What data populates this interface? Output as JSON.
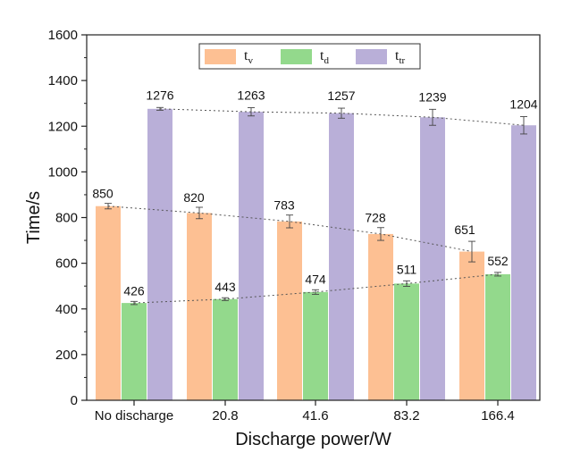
{
  "chart_data": {
    "type": "bar",
    "title": "",
    "xlabel": "Discharge power/W",
    "ylabel": "Time/s",
    "ylim": [
      0,
      1600
    ],
    "yticks": [
      0,
      200,
      400,
      600,
      800,
      1000,
      1200,
      1400,
      1600
    ],
    "grid": false,
    "legend_position": "top-center",
    "categories": [
      "No discharge",
      "20.8",
      "41.6",
      "83.2",
      "166.4"
    ],
    "series": [
      {
        "name": "tv",
        "legend_base": "t",
        "legend_sub": "v",
        "color": "#FDC093",
        "values": [
          850,
          820,
          783,
          728,
          651
        ],
        "errors": [
          12,
          25,
          28,
          28,
          45
        ],
        "labels": [
          "850",
          "820",
          "783",
          "728",
          "651"
        ]
      },
      {
        "name": "td",
        "legend_base": "t",
        "legend_sub": "d",
        "color": "#93D98C",
        "values": [
          426,
          443,
          474,
          511,
          552
        ],
        "errors": [
          7,
          6,
          10,
          12,
          8
        ],
        "labels": [
          "426",
          "443",
          "474",
          "511",
          "552"
        ]
      },
      {
        "name": "ttr",
        "legend_base": "t",
        "legend_sub": "tr",
        "color": "#B9AFD8",
        "values": [
          1276,
          1263,
          1257,
          1239,
          1204
        ],
        "errors": [
          6,
          18,
          22,
          35,
          38
        ],
        "labels": [
          "1276",
          "1263",
          "1257",
          "1239",
          "1204"
        ]
      }
    ],
    "trendlines": "dotted line through each series' bar tops"
  }
}
